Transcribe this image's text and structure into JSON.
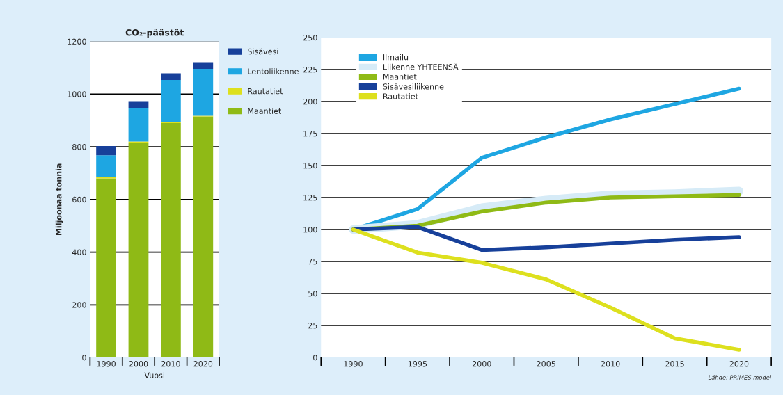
{
  "chart_data": [
    {
      "type": "bar",
      "title": "CO₂-päästöt",
      "xlabel": "Vuosi",
      "ylabel": "Miljoonaa tonnia",
      "categories": [
        "1990",
        "2000",
        "2010",
        "2020"
      ],
      "stacked": true,
      "series": [
        {
          "name": "Maantiet",
          "color": "#8fba16",
          "values": [
            680,
            815,
            890,
            915
          ]
        },
        {
          "name": "Rautatiet",
          "color": "#dde01e",
          "values": [
            6,
            5,
            4,
            3
          ]
        },
        {
          "name": "Lentoliikenne",
          "color": "#1ea6e2",
          "values": [
            82,
            128,
            160,
            178
          ]
        },
        {
          "name": "Sisävesi",
          "color": "#17409a",
          "values": [
            35,
            25,
            25,
            25
          ]
        }
      ],
      "ylim": [
        0,
        1200
      ],
      "yticks": [
        0,
        200,
        400,
        600,
        800,
        1000,
        1200
      ],
      "grid": "y",
      "legend": "right"
    },
    {
      "type": "line",
      "categories": [
        "1990",
        "1995",
        "2000",
        "2005",
        "2010",
        "2015",
        "2020"
      ],
      "series": [
        {
          "name": "Ilmailu",
          "color": "#1ea6e2",
          "values": [
            100,
            116,
            156,
            172,
            186,
            198,
            210
          ]
        },
        {
          "name": "Liikenne YHTEENSÄ",
          "color": "#d6ebf7",
          "values": [
            100,
            104,
            117,
            123,
            127,
            128,
            130
          ]
        },
        {
          "name": "Maantiet",
          "color": "#8fba16",
          "values": [
            100,
            103,
            114,
            121,
            125,
            126,
            127
          ]
        },
        {
          "name": "Sisävesiliikenne",
          "color": "#17409a",
          "values": [
            100,
            102,
            84,
            86,
            89,
            92,
            94
          ]
        },
        {
          "name": "Rautatiet",
          "color": "#dde01e",
          "values": [
            100,
            82,
            74,
            61,
            39,
            15,
            6
          ]
        }
      ],
      "ylim": [
        0,
        250
      ],
      "yticks": [
        0,
        25,
        50,
        75,
        100,
        125,
        150,
        175,
        200,
        225,
        250
      ],
      "grid": "y",
      "legend": "top left",
      "line_style": "solid",
      "marker": "none",
      "annotations": [
        "Lähde: PRIMES model"
      ]
    }
  ]
}
